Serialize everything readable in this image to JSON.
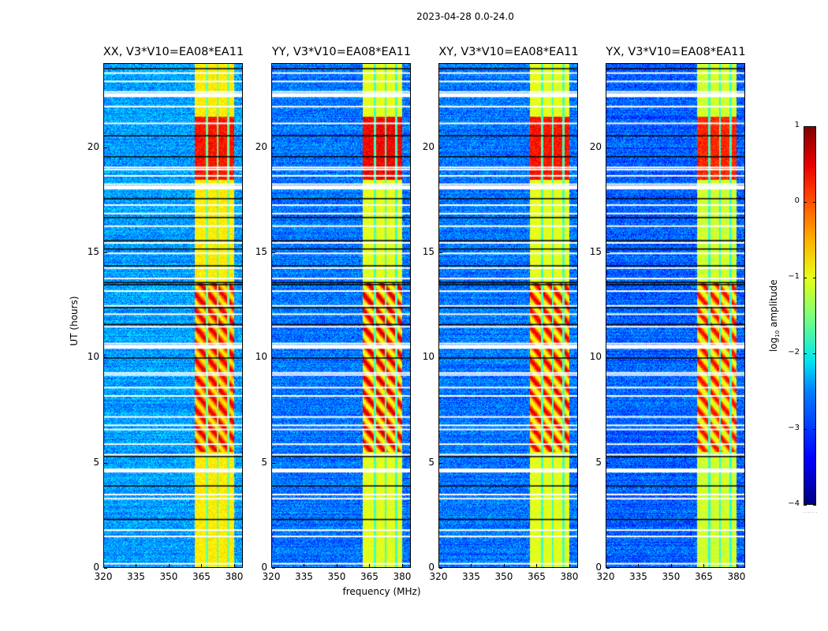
{
  "chart_data": {
    "type": "heatmap",
    "title": "2023-04-28 0.0-24.0",
    "xlabel": "frequency (MHz)",
    "ylabel": "UT (hours)",
    "xlim": [
      320,
      384
    ],
    "ylim": [
      0,
      24
    ],
    "x_ticks": [
      "320",
      "335",
      "350",
      "365",
      "380"
    ],
    "x_tick_values": [
      320,
      335,
      350,
      365,
      380
    ],
    "y_ticks": [
      "0",
      "5",
      "10",
      "15",
      "20"
    ],
    "y_tick_values": [
      0,
      5,
      10,
      15,
      20
    ],
    "colormap": "jet",
    "colorbar": {
      "label_main": "log",
      "label_sub": "10",
      "label_rest": " amplitude",
      "range": [
        -4,
        1
      ],
      "ticks": [
        "1",
        "0",
        "−1",
        "−2",
        "−3",
        "−4"
      ],
      "tick_values": [
        1,
        0,
        -1,
        -2,
        -3,
        -4
      ],
      "dots": "......"
    },
    "panels": [
      {
        "title": "XX, V3*V10=EA08*EA11",
        "pol": "XX",
        "background_level": -2.6,
        "band_level": -0.8,
        "peak_level": 0.5
      },
      {
        "title": "YY, V3*V10=EA08*EA11",
        "pol": "YY",
        "background_level": -2.8,
        "band_level": -1.0,
        "peak_level": 0.6
      },
      {
        "title": "XY, V3*V10=EA08*EA11",
        "pol": "XY",
        "background_level": -2.8,
        "band_level": -1.0,
        "peak_level": 0.5
      },
      {
        "title": "YX, V3*V10=EA08*EA11",
        "pol": "YX",
        "background_level": -2.9,
        "band_level": -1.1,
        "peak_level": 0.4
      }
    ],
    "rfi_band_mhz": [
      362,
      380
    ],
    "rfi_subbands_mhz": [
      [
        362,
        367
      ],
      [
        368,
        372
      ],
      [
        373,
        377
      ],
      [
        378,
        380
      ]
    ],
    "strong_periods_ut": [
      [
        18.5,
        21.5
      ],
      [
        13.0,
        13.6
      ],
      [
        5.5,
        13.0
      ]
    ],
    "flagged_rows_ut": [
      0.2,
      1.5,
      1.8,
      3.3,
      3.5,
      4.6,
      4.7,
      5.4,
      5.9,
      6.6,
      6.8,
      7.2,
      8.2,
      8.6,
      9.2,
      9.3,
      10.5,
      10.6,
      10.7,
      11.5,
      12.1,
      12.5,
      13.2,
      13.8,
      14.3,
      15.0,
      15.5,
      16.3,
      16.9,
      17.3,
      18.1,
      18.2,
      18.3,
      18.7,
      19.0,
      19.1,
      21.2,
      22.0,
      22.5,
      22.6,
      22.7,
      23.2,
      23.6
    ],
    "black_rows_ut": [
      2.3,
      3.9,
      5.3,
      10.0,
      11.6,
      12.4,
      13.5,
      13.6,
      14.4,
      15.2,
      15.6,
      16.7,
      17.6,
      19.6,
      20.6,
      23.8
    ]
  }
}
